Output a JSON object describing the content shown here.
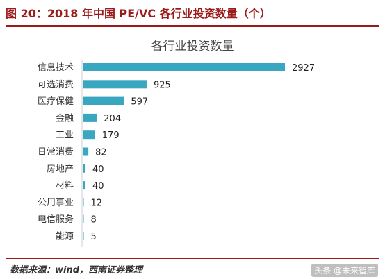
{
  "figure": {
    "title": "图 20：2018 年中国 PE/VC 各行业投资数量（个）",
    "source": "数据来源：wind，西南证券整理",
    "watermark": "头条 @未来智库"
  },
  "colors": {
    "bar": "#3aa7c0",
    "accent": "#9b1b1b",
    "axis": "#cfcfcf"
  },
  "chart_data": {
    "type": "bar",
    "orientation": "horizontal",
    "title": "各行业投资数量",
    "categories": [
      "信息技术",
      "可选消费",
      "医疗保健",
      "金融",
      "工业",
      "日常消费",
      "房地产",
      "材料",
      "公用事业",
      "电信服务",
      "能源"
    ],
    "values": [
      2927,
      925,
      597,
      204,
      179,
      82,
      40,
      40,
      12,
      8,
      5
    ],
    "xlim": [
      0,
      2927
    ],
    "grid": false,
    "legend": "none"
  }
}
